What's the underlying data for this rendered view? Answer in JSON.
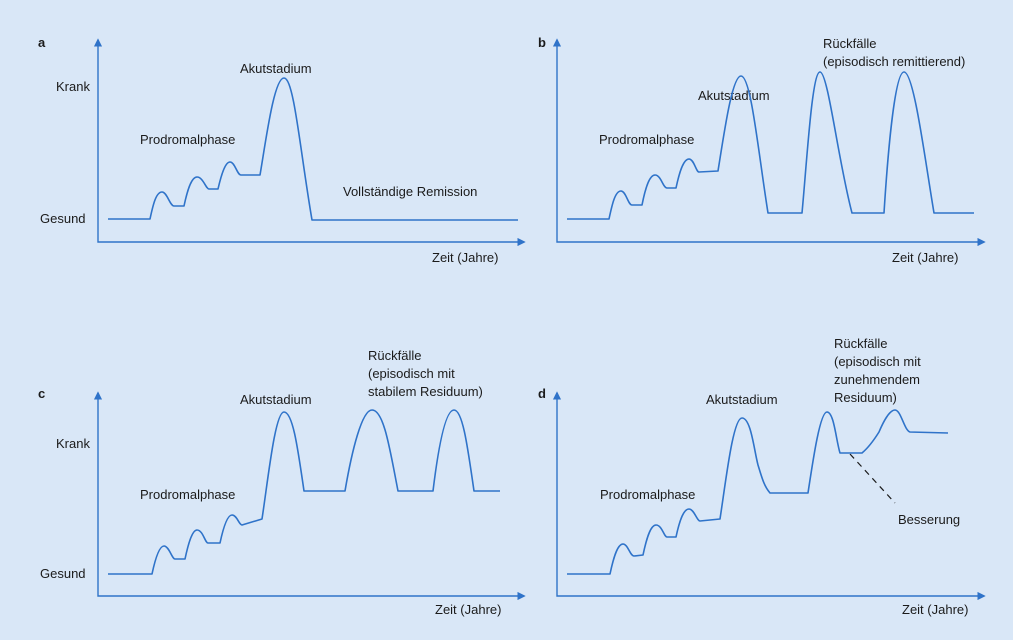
{
  "panels": {
    "a": {
      "letter": "a",
      "y_high": "Krank",
      "y_low": "Gesund",
      "x_label": "Zeit (Jahre)",
      "prodromal": "Prodromalphase",
      "acute": "Akutstadium",
      "remission": "Vollständige Remission"
    },
    "b": {
      "letter": "b",
      "x_label": "Zeit (Jahre)",
      "prodromal": "Prodromalphase",
      "acute": "Akutstadium",
      "relapse_1": "Rückfälle",
      "relapse_2": "(episodisch remittierend)"
    },
    "c": {
      "letter": "c",
      "y_high": "Krank",
      "y_low": "Gesund",
      "x_label": "Zeit (Jahre)",
      "prodromal": "Prodromalphase",
      "acute": "Akutstadium",
      "relapse_1": "Rückfälle",
      "relapse_2": "(episodisch mit",
      "relapse_3": "stabilem Residuum)"
    },
    "d": {
      "letter": "d",
      "x_label": "Zeit (Jahre)",
      "prodromal": "Prodromalphase",
      "acute": "Akutstadium",
      "relapse_1": "Rückfälle",
      "relapse_2": "(episodisch mit",
      "relapse_3": "zunehmendem",
      "relapse_4": "Residuum)",
      "improvement": "Besserung"
    }
  },
  "colors": {
    "background": "#d9e7f7",
    "curve": "#2f73c9",
    "text": "#1b1b1b"
  }
}
